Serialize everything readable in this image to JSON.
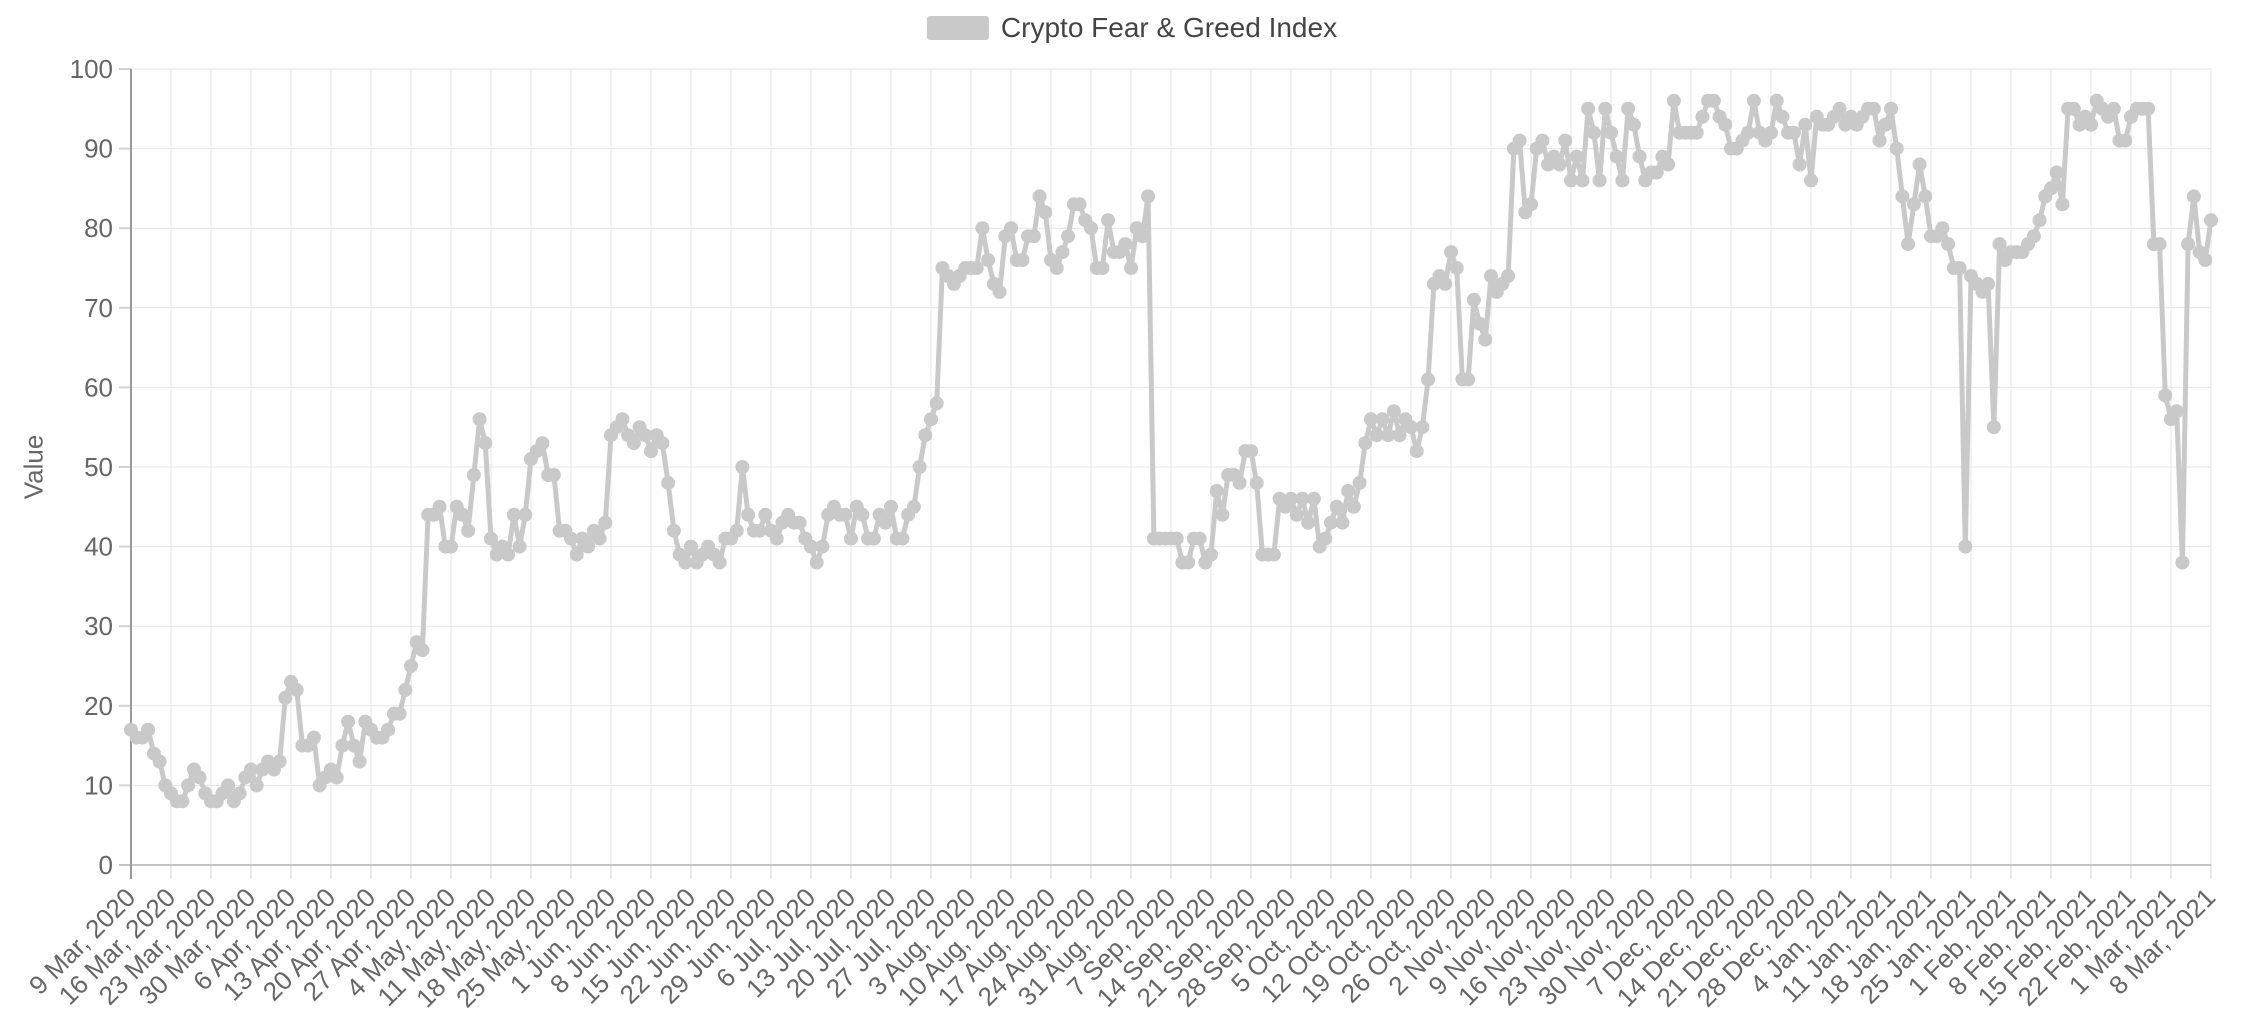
{
  "page": {
    "background": "#ffffff"
  },
  "legend": {
    "label": "Crypto Fear & Greed Index",
    "swatch_color": "#c9c9c9"
  },
  "chart_data": {
    "type": "line",
    "title": "Crypto Fear & Greed Index",
    "xlabel": "",
    "ylabel": "Value",
    "ylim": [
      0,
      100
    ],
    "y_ticks": [
      0,
      10,
      20,
      30,
      40,
      50,
      60,
      70,
      80,
      90,
      100
    ],
    "grid": true,
    "legend_position": "top-center",
    "x_label_rotation": -45,
    "points_per_label": 7,
    "x_labels": [
      "9 Mar, 2020",
      "16 Mar, 2020",
      "23 Mar, 2020",
      "30 Mar, 2020",
      "6 Apr, 2020",
      "13 Apr, 2020",
      "20 Apr, 2020",
      "27 Apr, 2020",
      "4 May, 2020",
      "11 May, 2020",
      "18 May, 2020",
      "25 May, 2020",
      "1 Jun, 2020",
      "8 Jun, 2020",
      "15 Jun, 2020",
      "22 Jun, 2020",
      "29 Jun, 2020",
      "6 Jul, 2020",
      "13 Jul, 2020",
      "20 Jul, 2020",
      "27 Jul, 2020",
      "3 Aug, 2020",
      "10 Aug, 2020",
      "17 Aug, 2020",
      "24 Aug, 2020",
      "31 Aug, 2020",
      "7 Sep, 2020",
      "14 Sep, 2020",
      "21 Sep, 2020",
      "28 Sep, 2020",
      "5 Oct, 2020",
      "12 Oct, 2020",
      "19 Oct, 2020",
      "26 Oct, 2020",
      "2 Nov, 2020",
      "9 Nov, 2020",
      "16 Nov, 2020",
      "23 Nov, 2020",
      "30 Nov, 2020",
      "7 Dec, 2020",
      "14 Dec, 2020",
      "21 Dec, 2020",
      "28 Dec, 2020",
      "4 Jan, 2021",
      "11 Jan, 2021",
      "18 Jan, 2021",
      "25 Jan, 2021",
      "1 Feb, 2021",
      "8 Feb, 2021",
      "15 Feb, 2021",
      "22 Feb, 2021",
      "1 Mar, 2021",
      "8 Mar, 2021"
    ],
    "series": [
      {
        "name": "Crypto Fear & Greed Index",
        "color": "#c9c9c9",
        "marker": "circle",
        "values": [
          17,
          16,
          16,
          17,
          14,
          13,
          10,
          9,
          8,
          8,
          10,
          12,
          11,
          9,
          8,
          8,
          9,
          10,
          8,
          9,
          11,
          12,
          10,
          12,
          13,
          12,
          13,
          21,
          23,
          22,
          15,
          15,
          16,
          10,
          11,
          12,
          11,
          15,
          18,
          15,
          13,
          18,
          17,
          16,
          16,
          17,
          19,
          19,
          22,
          25,
          28,
          27,
          44,
          44,
          45,
          40,
          40,
          45,
          44,
          42,
          49,
          56,
          53,
          41,
          39,
          40,
          39,
          44,
          40,
          44,
          51,
          52,
          53,
          49,
          49,
          42,
          42,
          41,
          39,
          41,
          40,
          42,
          41,
          43,
          54,
          55,
          56,
          54,
          53,
          55,
          54,
          52,
          54,
          53,
          48,
          42,
          39,
          38,
          40,
          38,
          39,
          40,
          39,
          38,
          41,
          41,
          42,
          50,
          44,
          42,
          42,
          44,
          42,
          41,
          43,
          44,
          43,
          43,
          41,
          40,
          38,
          40,
          44,
          45,
          44,
          44,
          41,
          45,
          44,
          41,
          41,
          44,
          43,
          45,
          41,
          41,
          44,
          45,
          50,
          54,
          56,
          58,
          75,
          74,
          73,
          74,
          75,
          75,
          75,
          80,
          76,
          73,
          72,
          79,
          80,
          76,
          76,
          79,
          79,
          84,
          82,
          76,
          75,
          77,
          79,
          83,
          83,
          81,
          80,
          75,
          75,
          81,
          77,
          77,
          78,
          75,
          80,
          79,
          84,
          41,
          41,
          41,
          41,
          41,
          38,
          38,
          41,
          41,
          38,
          39,
          47,
          44,
          49,
          49,
          48,
          52,
          52,
          48,
          39,
          39,
          39,
          46,
          45,
          46,
          44,
          46,
          43,
          46,
          40,
          41,
          43,
          45,
          43,
          47,
          45,
          48,
          53,
          56,
          54,
          56,
          54,
          57,
          54,
          56,
          55,
          52,
          55,
          61,
          73,
          74,
          73,
          77,
          75,
          61,
          61,
          71,
          68,
          66,
          74,
          72,
          73,
          74,
          90,
          91,
          82,
          83,
          90,
          91,
          88,
          89,
          88,
          91,
          86,
          89,
          86,
          95,
          92,
          86,
          95,
          92,
          89,
          86,
          95,
          93,
          89,
          86,
          87,
          87,
          89,
          88,
          96,
          92,
          92,
          92,
          92,
          94,
          96,
          96,
          94,
          93,
          90,
          90,
          91,
          92,
          96,
          92,
          91,
          92,
          96,
          94,
          92,
          92,
          88,
          93,
          86,
          94,
          93,
          93,
          94,
          95,
          93,
          94,
          93,
          94,
          95,
          95,
          91,
          93,
          95,
          90,
          84,
          78,
          83,
          88,
          84,
          79,
          79,
          80,
          78,
          75,
          75,
          40,
          74,
          73,
          72,
          73,
          55,
          78,
          76,
          77,
          77,
          77,
          78,
          79,
          81,
          84,
          85,
          87,
          83,
          95,
          95,
          93,
          94,
          93,
          96,
          95,
          94,
          95,
          91,
          91,
          94,
          95,
          95,
          95,
          78,
          78,
          59,
          56,
          57,
          38,
          78,
          84,
          77,
          76,
          81
        ]
      }
    ],
    "colors": {
      "axis_label": "#666666",
      "axis_line": "#999999",
      "baseline": "#c4c4c4",
      "grid_line": "#e6e6e6",
      "tick_line": "#d4d4d4",
      "title_text": "#444444"
    }
  }
}
